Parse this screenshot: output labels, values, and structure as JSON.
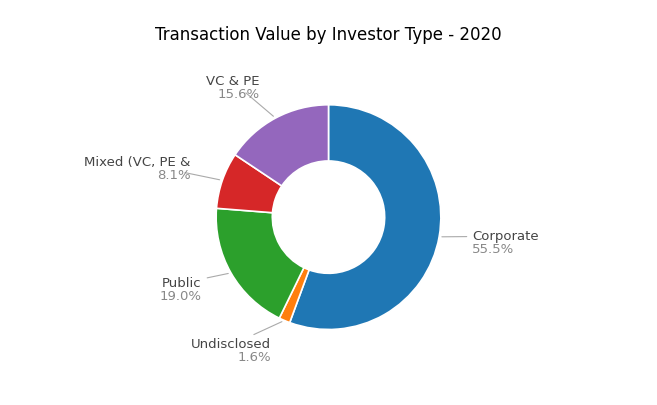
{
  "chart_data": {
    "type": "pie",
    "title": "Transaction Value by Investor Type - 2020",
    "categories": [
      "Corporate",
      "Undisclosed",
      "Public",
      "Mixed (VC, PE &",
      "VC & PE"
    ],
    "values": [
      55.5,
      1.6,
      19.0,
      8.1,
      15.6
    ],
    "value_labels": [
      "55.5%",
      "1.6%",
      "19.0%",
      "8.1%",
      "15.6%"
    ],
    "data_labels": true
  }
}
